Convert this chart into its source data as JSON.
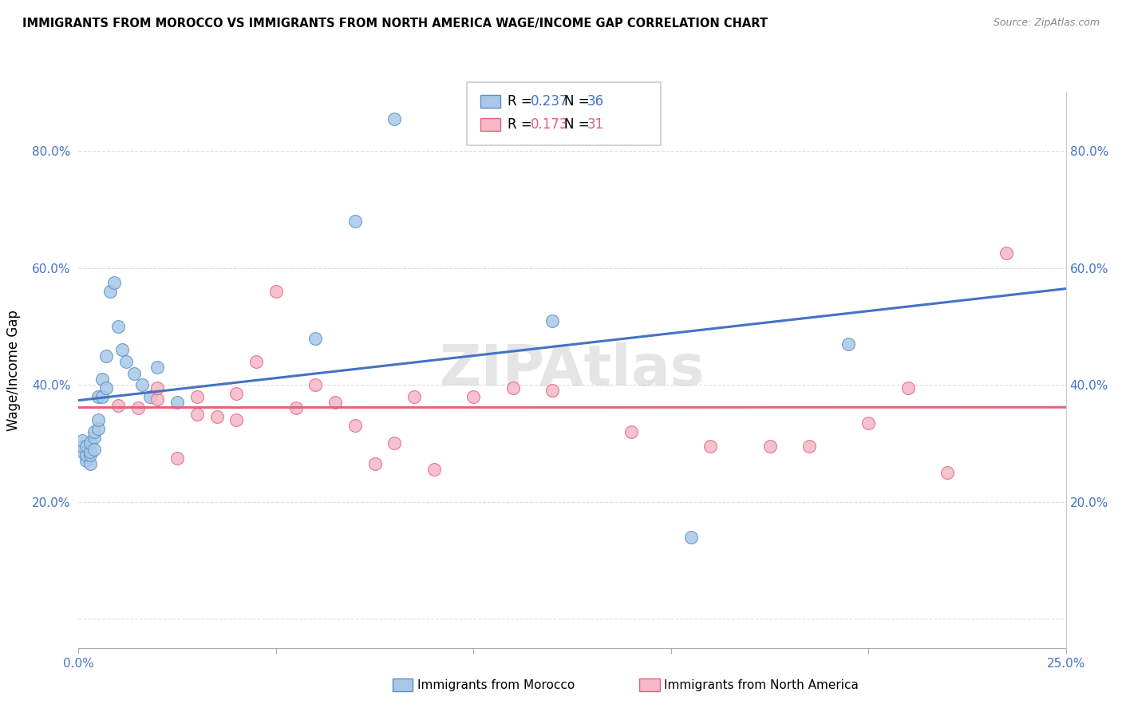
{
  "title": "IMMIGRANTS FROM MOROCCO VS IMMIGRANTS FROM NORTH AMERICA WAGE/INCOME GAP CORRELATION CHART",
  "source": "Source: ZipAtlas.com",
  "ylabel": "Wage/Income Gap",
  "xlim": [
    0.0,
    0.25
  ],
  "ylim": [
    -0.05,
    0.9
  ],
  "xticks": [
    0.0,
    0.05,
    0.1,
    0.15,
    0.2,
    0.25
  ],
  "xticklabels": [
    "0.0%",
    "",
    "",
    "",
    "",
    "25.0%"
  ],
  "yticks": [
    0.0,
    0.2,
    0.4,
    0.6,
    0.8
  ],
  "yticklabels": [
    "",
    "20.0%",
    "40.0%",
    "60.0%",
    "80.0%"
  ],
  "morocco_color": "#a8c8e8",
  "north_america_color": "#f4b8c8",
  "morocco_edge_color": "#5b8ec4",
  "north_america_edge_color": "#e8607a",
  "morocco_line_color": "#4472c4",
  "north_america_line_color": "#e8607a",
  "tick_color": "#4472c4",
  "watermark": "ZIPAtlas",
  "morocco_x": [
    0.001,
    0.001,
    0.001,
    0.002,
    0.002,
    0.002,
    0.003,
    0.003,
    0.003,
    0.003,
    0.004,
    0.004,
    0.004,
    0.005,
    0.005,
    0.005,
    0.006,
    0.006,
    0.007,
    0.007,
    0.008,
    0.009,
    0.01,
    0.011,
    0.012,
    0.014,
    0.016,
    0.018,
    0.02,
    0.025,
    0.06,
    0.07,
    0.08,
    0.12,
    0.155,
    0.195
  ],
  "morocco_y": [
    0.285,
    0.295,
    0.305,
    0.27,
    0.28,
    0.295,
    0.265,
    0.28,
    0.285,
    0.3,
    0.31,
    0.32,
    0.29,
    0.325,
    0.34,
    0.38,
    0.38,
    0.41,
    0.395,
    0.45,
    0.56,
    0.575,
    0.5,
    0.46,
    0.44,
    0.42,
    0.4,
    0.38,
    0.43,
    0.37,
    0.48,
    0.68,
    0.855,
    0.51,
    0.14,
    0.47
  ],
  "north_america_x": [
    0.01,
    0.015,
    0.02,
    0.02,
    0.025,
    0.03,
    0.03,
    0.035,
    0.04,
    0.04,
    0.045,
    0.05,
    0.055,
    0.06,
    0.065,
    0.07,
    0.075,
    0.08,
    0.085,
    0.09,
    0.1,
    0.11,
    0.12,
    0.14,
    0.16,
    0.175,
    0.185,
    0.2,
    0.21,
    0.22,
    0.235
  ],
  "north_america_y": [
    0.365,
    0.36,
    0.375,
    0.395,
    0.275,
    0.35,
    0.38,
    0.345,
    0.385,
    0.34,
    0.44,
    0.56,
    0.36,
    0.4,
    0.37,
    0.33,
    0.265,
    0.3,
    0.38,
    0.255,
    0.38,
    0.395,
    0.39,
    0.32,
    0.295,
    0.295,
    0.295,
    0.335,
    0.395,
    0.25,
    0.625
  ]
}
